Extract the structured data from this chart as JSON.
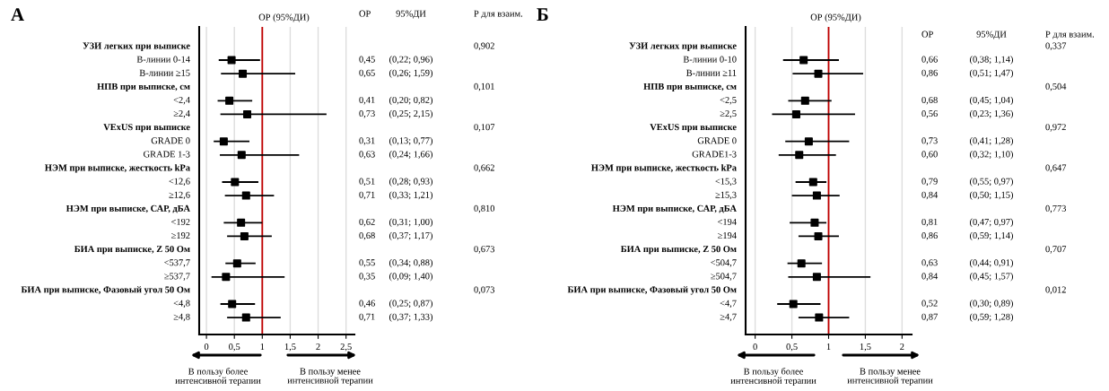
{
  "chart_data": [
    {
      "type": "scatter",
      "title": "А",
      "orientation": "horizontal",
      "marker": "square",
      "grid": "x",
      "categories": [
        "УЗИ легких при выписке",
        "В-линии 0-14",
        "В-линии ≥15",
        "НПВ при выписке, см",
        "<2,4",
        "≥2,4",
        "VExUS при выписке",
        "GRADE 0",
        "GRADE 1-3",
        "НЭМ при выписке, жесткость kPa",
        "<12,6",
        "≥12,6",
        "НЭМ при выписке, САР, дБА",
        "<192",
        "≥192",
        "БИА при выписке, Z 50 Ом",
        "<537,7",
        "≥537,7",
        "БИА при выписке, Фазовый угол 50 Ом",
        "<4,8",
        "≥4,8"
      ],
      "series": [
        {
          "color": "#000000",
          "values": [
            null,
            0.45,
            0.65,
            null,
            0.41,
            0.73,
            null,
            0.31,
            0.63,
            null,
            0.51,
            0.71,
            null,
            0.62,
            0.68,
            null,
            0.55,
            0.35,
            null,
            0.46,
            0.71
          ],
          "errors": [
            null,
            [
              0.22,
              0.96
            ],
            [
              0.26,
              1.59
            ],
            null,
            [
              0.2,
              0.82
            ],
            [
              0.25,
              2.15
            ],
            null,
            [
              0.13,
              0.77
            ],
            [
              0.24,
              1.66
            ],
            null,
            [
              0.28,
              0.93
            ],
            [
              0.33,
              1.21
            ],
            null,
            [
              0.31,
              1.0
            ],
            [
              0.37,
              1.17
            ],
            null,
            [
              0.34,
              0.88
            ],
            [
              0.09,
              1.4
            ],
            null,
            [
              0.25,
              0.87
            ],
            [
              0.37,
              1.33
            ]
          ],
          "value_labels": [
            null,
            "0,45",
            "0,65",
            null,
            "0,41",
            "0,73",
            null,
            "0,31",
            "0,63",
            null,
            "0,51",
            "0,71",
            null,
            "0,62",
            "0,68",
            null,
            "0,55",
            "0,35",
            null,
            "0,46",
            "0,71"
          ]
        }
      ],
      "xlim": [
        -0.13,
        2.65
      ],
      "xticks": [
        0,
        {
          "value": 0.5,
          "label": "0,5"
        },
        1,
        {
          "value": 1.5,
          "label": "1,5"
        },
        2,
        {
          "value": 2.5,
          "label": "2,5"
        }
      ],
      "ref_lines": [
        {
          "axis": "x",
          "value": 1,
          "color": "#c00000"
        }
      ],
      "annotations": [
        "ОР (95%ДИ)",
        "ОР",
        "95%ДИ",
        "Р для взаим.",
        "В пользу более\nинтенсивной терапии",
        "В пользу менее\nинтенсивной терапии",
        "(0,22; 0,96)",
        "(0,26; 1,59)",
        "(0,20; 0,82)",
        "(0,25; 2,15)",
        "(0,13; 0,77)",
        "(0,24; 1,66)",
        "(0,28; 0,93)",
        "(0,33; 1,21)",
        "(0,31; 1,00)",
        "(0,37; 1,17)",
        "(0,34; 0,88)",
        "(0,09; 1,40)",
        "(0,25; 0,87)",
        "(0,37; 1,33)",
        "0,902",
        "0,101",
        "0,107",
        "0,662",
        "0,810",
        "0,673",
        "0,073"
      ]
    },
    {
      "type": "scatter",
      "title": "Б",
      "orientation": "horizontal",
      "marker": "square",
      "grid": "x",
      "categories": [
        "УЗИ легких при выписке",
        "В-линии 0-10",
        "В-линии ≥11",
        "НПВ при выписке, см",
        "<2,5",
        "≥2,5",
        "VExUS при выписке",
        "GRADE 0",
        "GRADE1-3",
        "НЭМ при выписке, жесткость kPa",
        "<15,3",
        "≥15,3",
        "НЭМ при выписке, САР, дБА",
        "<194",
        "≥194",
        "БИА при выписке, Z 50 Ом",
        "<504,7",
        "≥504,7",
        "БИА при выписке, Фазовый угол 50 Ом",
        "<4,7",
        "≥4,7"
      ],
      "series": [
        {
          "color": "#000000",
          "values": [
            null,
            0.66,
            0.86,
            null,
            0.68,
            0.56,
            null,
            0.73,
            0.6,
            null,
            0.79,
            0.84,
            null,
            0.81,
            0.86,
            null,
            0.63,
            0.84,
            null,
            0.52,
            0.87
          ],
          "errors": [
            null,
            [
              0.38,
              1.14
            ],
            [
              0.51,
              1.47
            ],
            null,
            [
              0.45,
              1.04
            ],
            [
              0.23,
              1.36
            ],
            null,
            [
              0.41,
              1.28
            ],
            [
              0.32,
              1.1
            ],
            null,
            [
              0.55,
              0.97
            ],
            [
              0.5,
              1.15
            ],
            null,
            [
              0.47,
              0.97
            ],
            [
              0.59,
              1.14
            ],
            null,
            [
              0.44,
              0.91
            ],
            [
              0.45,
              1.57
            ],
            null,
            [
              0.3,
              0.89
            ],
            [
              0.59,
              1.28
            ]
          ],
          "value_labels": [
            null,
            "0,66",
            "0,86",
            null,
            "0,68",
            "0,56",
            null,
            "0,73",
            "0,60",
            null,
            "0,79",
            "0,84",
            null,
            "0,81",
            "0,86",
            null,
            "0,63",
            "0,84",
            null,
            "0,52",
            "0,87"
          ]
        }
      ],
      "xlim": [
        -0.13,
        2.13
      ],
      "xticks": [
        0,
        {
          "value": 0.5,
          "label": "0,5"
        },
        1,
        {
          "value": 1.5,
          "label": "1,5"
        },
        2
      ],
      "ref_lines": [
        {
          "axis": "x",
          "value": 1,
          "color": "#c00000"
        }
      ],
      "annotations": [
        "ОР (95%ДИ)",
        "ОР",
        "95%ДИ",
        "Р для взаим.",
        "В пользу более\nинтенсивной терапии",
        "В пользу менее\nинтенсивной терапии",
        "(0,38; 1,14)",
        "(0,51; 1,47)",
        "(0,45; 1,04)",
        "(0,23; 1,36)",
        "(0,41; 1,28)",
        "(0,32; 1,10)",
        "(0,55; 0,97)",
        "(0,50; 1,15)",
        "(0,47; 0,97)",
        "(0,59; 1,14)",
        "(0,44; 0,91)",
        "(0,45; 1,57)",
        "(0,30; 0,89)",
        "(0,59; 1,28)",
        "0,337",
        "0,504",
        "0,972",
        "0,647",
        "0,773",
        "0,707",
        "0,012"
      ]
    }
  ]
}
